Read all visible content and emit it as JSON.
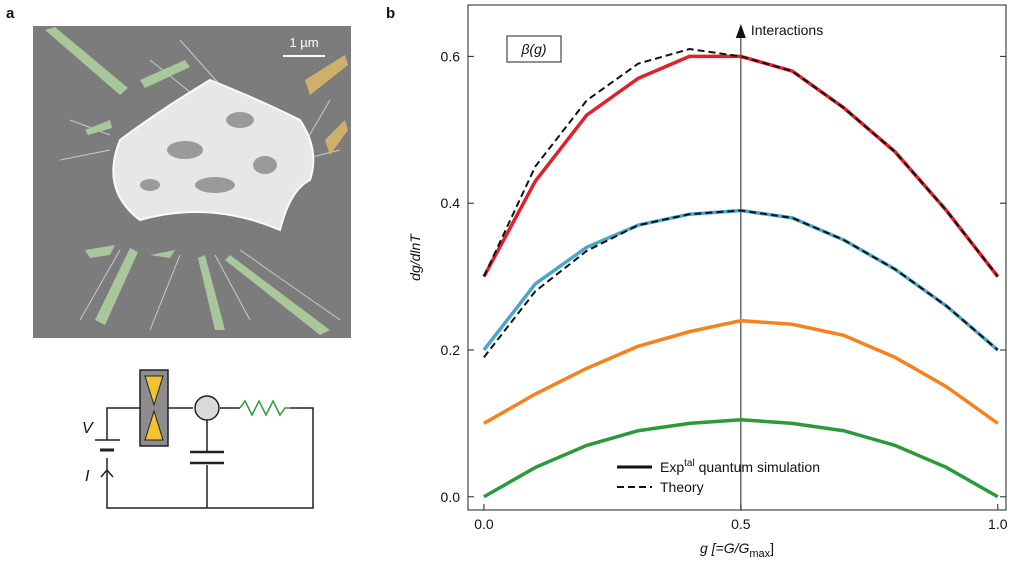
{
  "panel_labels": [
    "a",
    "b"
  ],
  "scale_bar": "1 µm",
  "circuit": {
    "voltage": "V",
    "current": "I"
  },
  "chart_data": {
    "type": "line",
    "title": "β(g)",
    "x_label": {
      "main": "g [=G/G",
      "sub": "max",
      "end": "]"
    },
    "y_label": "dg/dlnT",
    "x": [
      0,
      0.1,
      0.2,
      0.3,
      0.4,
      0.5,
      0.6,
      0.7,
      0.8,
      0.9,
      1.0
    ],
    "series": [
      {
        "color": "#e0202a",
        "style": "solid",
        "values": [
          0.3,
          0.43,
          0.52,
          0.57,
          0.6,
          0.6,
          0.58,
          0.53,
          0.47,
          0.39,
          0.3
        ]
      },
      {
        "color": "#111111",
        "style": "dashed",
        "values": [
          0.3,
          0.45,
          0.54,
          0.59,
          0.61,
          0.6,
          0.58,
          0.53,
          0.47,
          0.39,
          0.3
        ]
      },
      {
        "color": "#4aa7c9",
        "style": "solid",
        "values": [
          0.2,
          0.29,
          0.34,
          0.37,
          0.385,
          0.39,
          0.38,
          0.35,
          0.31,
          0.26,
          0.2
        ]
      },
      {
        "color": "#111111",
        "style": "dashed",
        "values": [
          0.19,
          0.28,
          0.335,
          0.37,
          0.385,
          0.39,
          0.38,
          0.35,
          0.31,
          0.26,
          0.2
        ]
      },
      {
        "color": "#f5821f",
        "style": "solid",
        "values": [
          0.1,
          0.14,
          0.175,
          0.205,
          0.225,
          0.24,
          0.235,
          0.22,
          0.19,
          0.15,
          0.1
        ]
      },
      {
        "color": "#2a9a3a",
        "style": "solid",
        "values": [
          0.0,
          0.04,
          0.07,
          0.09,
          0.1,
          0.105,
          0.1,
          0.09,
          0.07,
          0.04,
          0.0
        ]
      }
    ],
    "legend": [
      {
        "style": "solid",
        "label": {
          "main": "Exp",
          "sup": "tal",
          "end": " quantum simulation"
        }
      },
      {
        "style": "dashed",
        "label": {
          "main": "Theory"
        }
      }
    ],
    "annotation": {
      "text": "Interactions",
      "x": 0.5
    },
    "xlim": [
      -0.031,
      1.016
    ],
    "ylim": [
      -0.018,
      0.67
    ],
    "xticks": [
      {
        "value": 0,
        "label": "0.0"
      },
      0.5,
      {
        "value": 1,
        "label": "1.0"
      }
    ],
    "yticks": [
      {
        "value": 0,
        "label": "0.0"
      },
      0.2,
      0.4,
      0.6
    ]
  }
}
